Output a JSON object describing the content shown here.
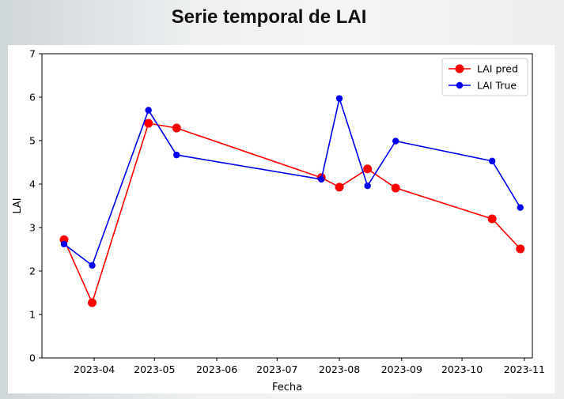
{
  "slide": {
    "title": "Serie temporal de LAI"
  },
  "colors": {
    "pred": "#ff0000",
    "true": "#0000ee",
    "axis": "#000000"
  },
  "chart_data": {
    "type": "line",
    "title": "",
    "xlabel": "Fecha",
    "ylabel": "LAI",
    "ylim": [
      0,
      7
    ],
    "yticks": [
      0,
      1,
      2,
      3,
      4,
      5,
      6,
      7
    ],
    "xlim": [
      "2023-03-06",
      "2023-11-05"
    ],
    "xticks": [
      "2023-04-01",
      "2023-05-01",
      "2023-06-01",
      "2023-07-01",
      "2023-08-01",
      "2023-09-01",
      "2023-10-01",
      "2023-11-01"
    ],
    "xtick_labels": [
      "2023-04",
      "2023-05",
      "2023-06",
      "2023-07",
      "2023-08",
      "2023-09",
      "2023-10",
      "2023-11"
    ],
    "grid": false,
    "legend_position": "top-right",
    "series": [
      {
        "name": "LAI pred",
        "color": "#ff0000",
        "marker_size": "large",
        "x": [
          "2023-03-17",
          "2023-03-31",
          "2023-04-28",
          "2023-05-12",
          "2023-07-23",
          "2023-08-01",
          "2023-08-15",
          "2023-08-29",
          "2023-10-16",
          "2023-10-30"
        ],
        "y": [
          2.72,
          1.27,
          5.4,
          5.29,
          4.15,
          3.93,
          4.35,
          3.91,
          3.2,
          2.51
        ]
      },
      {
        "name": "LAI True",
        "color": "#0000ee",
        "marker_size": "small",
        "x": [
          "2023-03-17",
          "2023-03-31",
          "2023-04-28",
          "2023-05-12",
          "2023-07-23",
          "2023-08-01",
          "2023-08-15",
          "2023-08-29",
          "2023-10-16",
          "2023-10-30"
        ],
        "y": [
          2.62,
          2.13,
          5.7,
          4.67,
          4.11,
          5.97,
          3.96,
          4.99,
          4.53,
          3.46
        ]
      }
    ]
  }
}
